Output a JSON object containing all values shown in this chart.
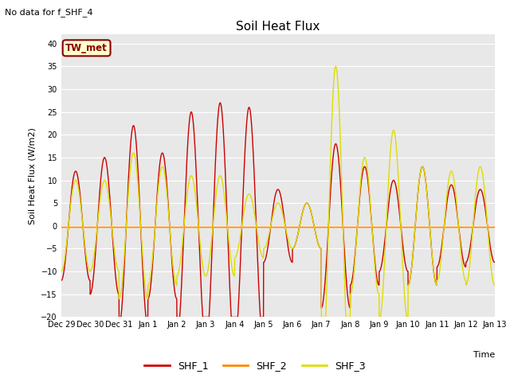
{
  "title": "Soil Heat Flux",
  "no_data_text": "No data for f_SHF_4",
  "tw_met_label": "TW_met",
  "ylabel": "Soil Heat Flux (W/m2)",
  "xlabel": "Time",
  "ylim": [
    -20,
    42
  ],
  "yticks": [
    -20,
    -15,
    -10,
    -5,
    0,
    5,
    10,
    15,
    20,
    25,
    30,
    35,
    40
  ],
  "bg_color": "#e8e8e8",
  "fig_color": "#ffffff",
  "shf1_color": "#cc0000",
  "shf2_color": "#ff8800",
  "shf3_color": "#dddd00",
  "legend_labels": [
    "SHF_1",
    "SHF_2",
    "SHF_3"
  ],
  "twmet_bg": "#ffffcc",
  "twmet_border": "#880000",
  "xtick_labels": [
    "Dec 29",
    "Dec 30",
    "Dec 31",
    "Jan 1",
    "Jan 2",
    "Jan 3",
    "Jan 4",
    "Jan 5",
    "Jan 6",
    "Jan 7",
    "Jan 8",
    "Jan 9",
    "Jan 10",
    "Jan 11",
    "Jan 12",
    "Jan 13"
  ],
  "shf1_amps": [
    12,
    15,
    22,
    16,
    25,
    27,
    26,
    8,
    5,
    18,
    13,
    10,
    13,
    9,
    8
  ],
  "shf3_amps": [
    10,
    10,
    16,
    13,
    11,
    11,
    7,
    5,
    5,
    35,
    15,
    21,
    13,
    12,
    13
  ]
}
